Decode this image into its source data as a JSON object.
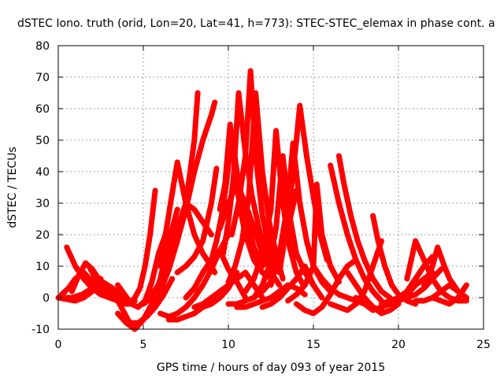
{
  "chart_data": {
    "type": "scatter",
    "title": "dSTEC Iono. truth (orid, Lon=20, Lat=41, h=773): STEC-STEC_elemax in phase cont. a",
    "xlabel": "GPS time / hours of day 093 of year 2015",
    "ylabel": "dSTEC  / TECUs",
    "xlim": [
      0,
      25
    ],
    "ylim": [
      -10,
      80
    ],
    "x_ticks": [
      0,
      5,
      10,
      15,
      20,
      25
    ],
    "y_ticks": [
      -10,
      0,
      10,
      20,
      30,
      40,
      50,
      60,
      70,
      80
    ],
    "grid": true,
    "legend": "none",
    "marker": "+",
    "color": "#ff0000",
    "series": [
      {
        "x": [
          0.0,
          0.5,
          1.0,
          1.5,
          2.0,
          2.5
        ],
        "y": [
          0,
          -0.5,
          -1,
          0,
          2,
          6
        ]
      },
      {
        "x": [
          0.5,
          1.0,
          1.5,
          2.0,
          2.5,
          3.0,
          3.5
        ],
        "y": [
          16,
          10,
          6,
          3,
          1,
          0,
          0
        ]
      },
      {
        "x": [
          0.2,
          0.6,
          1.0,
          1.5,
          2.0,
          2.5,
          3.0,
          3.5
        ],
        "y": [
          1,
          3,
          6,
          8,
          5,
          2,
          0,
          -1
        ]
      },
      {
        "x": [
          0.8,
          1.2,
          1.6,
          2.0,
          2.5,
          3.0,
          3.5,
          4.0
        ],
        "y": [
          2,
          7,
          11,
          9,
          5,
          2,
          0,
          -1
        ]
      },
      {
        "x": [
          1.8,
          2.2,
          2.6,
          3.0,
          3.5,
          4.0,
          4.5
        ],
        "y": [
          10,
          6,
          3,
          1,
          0,
          -1,
          -1
        ]
      },
      {
        "x": [
          0.2,
          0.8,
          1.4,
          2.0,
          2.6,
          3.2,
          3.8,
          4.2
        ],
        "y": [
          0,
          0,
          1,
          3,
          5,
          3,
          0,
          -2
        ]
      },
      {
        "x": [
          3.0,
          3.3,
          3.6,
          3.9,
          4.2,
          4.5,
          4.8,
          5.1,
          5.4,
          5.7
        ],
        "y": [
          1,
          0,
          -1,
          -2,
          -2,
          0,
          3,
          10,
          20,
          34
        ]
      },
      {
        "x": [
          3.5,
          3.9,
          4.3,
          4.7,
          5.1,
          5.5,
          5.9,
          6.3
        ],
        "y": [
          4,
          1,
          -2,
          -3,
          -1,
          5,
          14,
          20
        ]
      },
      {
        "x": [
          3.2,
          3.7,
          4.2,
          4.7,
          5.2,
          5.7,
          6.2,
          6.7
        ],
        "y": [
          2,
          -3,
          -8,
          -8,
          -6,
          -3,
          1,
          6
        ]
      },
      {
        "x": [
          3.5,
          4.0,
          4.5,
          5.0,
          5.5,
          6.0,
          6.5,
          7.0
        ],
        "y": [
          -5,
          -8,
          -10,
          -7,
          -2,
          6,
          18,
          28
        ]
      },
      {
        "x": [
          4.0,
          4.5,
          5.0,
          5.5,
          6.0,
          6.5,
          7.0,
          7.5,
          8.0,
          8.2
        ],
        "y": [
          -7,
          -9,
          -7,
          -3,
          2,
          9,
          18,
          30,
          50,
          65
        ]
      },
      {
        "x": [
          5.0,
          5.5,
          6.0,
          6.5,
          7.0,
          7.5,
          8.0,
          8.5,
          9.0,
          9.2
        ],
        "y": [
          -2,
          0,
          4,
          10,
          18,
          28,
          40,
          50,
          58,
          62
        ]
      },
      {
        "x": [
          5.5,
          6.0,
          6.5,
          7.0,
          7.5,
          8.0,
          8.5,
          9.0
        ],
        "y": [
          1,
          5,
          12,
          22,
          30,
          28,
          24,
          20
        ]
      },
      {
        "x": [
          6.0,
          6.3,
          6.6,
          7.0,
          7.5,
          8.0,
          8.5,
          9.0,
          9.2
        ],
        "y": [
          10,
          20,
          30,
          43,
          30,
          20,
          14,
          10,
          8
        ]
      },
      {
        "x": [
          6.0,
          6.5,
          7.0,
          7.5,
          8.0,
          8.5,
          9.0,
          9.5,
          10.0
        ],
        "y": [
          -5,
          -6,
          -5,
          -3,
          0,
          4,
          9,
          15,
          20
        ]
      },
      {
        "x": [
          6.5,
          7.0,
          7.5,
          8.0,
          8.5,
          9.0,
          9.5,
          10.0,
          10.5
        ],
        "y": [
          -7,
          -7,
          -6,
          -5,
          -3,
          -2,
          0,
          3,
          8
        ]
      },
      {
        "x": [
          7.0,
          7.5,
          8.0,
          8.5,
          9.0,
          9.3
        ],
        "y": [
          8,
          10,
          13,
          18,
          30,
          41
        ]
      },
      {
        "x": [
          7.5,
          8.0,
          8.5,
          9.0,
          9.5,
          10.0,
          10.5,
          11.0
        ],
        "y": [
          0,
          3,
          8,
          12,
          15,
          9,
          5,
          0
        ]
      },
      {
        "x": [
          8.0,
          8.5,
          9.0,
          9.5,
          10.0,
          10.5,
          11.0,
          11.5,
          12.0
        ],
        "y": [
          -3,
          -2,
          0,
          2,
          4,
          6,
          8,
          4,
          0
        ]
      },
      {
        "x": [
          9.0,
          9.3,
          9.6,
          9.9,
          10.2,
          10.5,
          11.0,
          11.5,
          12.0
        ],
        "y": [
          12,
          18,
          26,
          37,
          52,
          40,
          26,
          16,
          10
        ]
      },
      {
        "x": [
          9.5,
          9.8,
          10.1,
          10.4,
          10.7,
          11.0,
          11.5,
          12.0,
          12.5
        ],
        "y": [
          28,
          36,
          55,
          40,
          28,
          20,
          12,
          8,
          6
        ]
      },
      {
        "x": [
          9.5,
          10.0,
          10.5,
          11.0,
          11.5,
          12.0,
          12.5,
          13.0
        ],
        "y": [
          22,
          30,
          36,
          30,
          22,
          14,
          8,
          4
        ]
      },
      {
        "x": [
          9.7,
          10.0,
          10.3,
          10.6,
          11.0,
          11.4,
          11.8,
          12.2,
          12.6
        ],
        "y": [
          14,
          24,
          38,
          65,
          46,
          32,
          22,
          14,
          8
        ]
      },
      {
        "x": [
          10.0,
          10.4,
          10.8,
          11.2,
          11.6,
          12.0,
          12.4,
          12.8,
          13.2
        ],
        "y": [
          5,
          10,
          18,
          32,
          65,
          40,
          24,
          14,
          6
        ]
      },
      {
        "x": [
          10.2,
          10.6,
          11.0,
          11.3,
          11.6,
          12.0,
          12.4,
          12.8
        ],
        "y": [
          20,
          30,
          45,
          72,
          45,
          26,
          16,
          10
        ]
      },
      {
        "x": [
          10.0,
          10.5,
          11.0,
          11.5,
          12.0,
          12.5,
          13.0,
          13.5,
          14.0
        ],
        "y": [
          -2,
          -2,
          -1,
          0,
          2,
          5,
          12,
          22,
          34
        ]
      },
      {
        "x": [
          10.5,
          11.0,
          11.5,
          12.0,
          12.5,
          13.0,
          13.5,
          14.0,
          14.5
        ],
        "y": [
          -3,
          -3,
          -2,
          -1,
          0,
          2,
          4,
          3,
          1
        ]
      },
      {
        "x": [
          11.0,
          11.5,
          12.0,
          12.5,
          12.8,
          13.2,
          13.6,
          14.0,
          14.4
        ],
        "y": [
          2,
          6,
          14,
          28,
          53,
          30,
          16,
          8,
          4
        ]
      },
      {
        "x": [
          11.5,
          12.0,
          12.4,
          12.8,
          13.2,
          13.6,
          14.0,
          14.5,
          15.0
        ],
        "y": [
          0,
          4,
          10,
          22,
          45,
          26,
          14,
          8,
          4
        ]
      },
      {
        "x": [
          12.0,
          12.5,
          13.0,
          13.5,
          14.0,
          14.5,
          15.0,
          15.5
        ],
        "y": [
          -3,
          -2,
          0,
          3,
          6,
          10,
          4,
          0
        ]
      },
      {
        "x": [
          12.5,
          13.0,
          13.5,
          13.8,
          14.2,
          14.6,
          15.0,
          15.5,
          16.0
        ],
        "y": [
          4,
          14,
          30,
          49,
          30,
          18,
          10,
          5,
          2
        ]
      },
      {
        "x": [
          13.0,
          13.5,
          14.0,
          14.2,
          14.6,
          15.0,
          15.4,
          15.8
        ],
        "y": [
          8,
          25,
          50,
          61,
          45,
          32,
          20,
          12
        ]
      },
      {
        "x": [
          13.5,
          14.0,
          14.5,
          15.0,
          15.2,
          15.5,
          16.0,
          16.5
        ],
        "y": [
          -1,
          1,
          4,
          10,
          36,
          20,
          10,
          5
        ]
      },
      {
        "x": [
          14.0,
          14.5,
          15.0,
          15.5,
          16.0,
          16.5,
          17.0,
          17.5
        ],
        "y": [
          -2,
          -4,
          -5,
          -3,
          1,
          6,
          10,
          12
        ]
      },
      {
        "x": [
          15.0,
          15.5,
          16.0,
          16.5,
          17.0,
          17.5,
          18.0,
          18.5,
          19.0
        ],
        "y": [
          10,
          6,
          3,
          1,
          0,
          -1,
          -2,
          -3,
          -4
        ]
      },
      {
        "x": [
          16.0,
          16.5,
          17.0,
          17.5,
          18.0,
          18.5,
          19.0
        ],
        "y": [
          42,
          30,
          20,
          12,
          6,
          2,
          -1
        ]
      },
      {
        "x": [
          16.5,
          16.8,
          17.2,
          17.6,
          18.0,
          18.5,
          19.0,
          19.5
        ],
        "y": [
          45,
          36,
          26,
          18,
          12,
          6,
          2,
          0
        ]
      },
      {
        "x": [
          16.0,
          16.5,
          17.0,
          17.5,
          18.0,
          18.5,
          19.0
        ],
        "y": [
          -2,
          -3,
          -4,
          -2,
          2,
          10,
          18
        ]
      },
      {
        "x": [
          17.0,
          17.5,
          18.0,
          18.5,
          19.0,
          19.5,
          20.0
        ],
        "y": [
          8,
          4,
          0,
          -3,
          -5,
          -4,
          -2
        ]
      },
      {
        "x": [
          18.5,
          18.8,
          19.2,
          19.6,
          20.0,
          20.5,
          21.0
        ],
        "y": [
          26,
          18,
          10,
          4,
          1,
          -1,
          -2
        ]
      },
      {
        "x": [
          17.5,
          18.0,
          18.5,
          19.0,
          19.5,
          20.0,
          20.5,
          21.0,
          21.5,
          22.0
        ],
        "y": [
          0,
          -2,
          -4,
          -3,
          -2,
          -1,
          1,
          4,
          6,
          8
        ]
      },
      {
        "x": [
          19.0,
          19.5,
          20.0,
          20.5,
          21.0,
          21.5,
          22.0
        ],
        "y": [
          -2,
          -1,
          0,
          2,
          6,
          10,
          13
        ]
      },
      {
        "x": [
          19.5,
          20.0,
          20.5,
          21.0,
          21.5,
          22.0,
          22.5
        ],
        "y": [
          -1,
          -1,
          0,
          1,
          3,
          6,
          9
        ]
      },
      {
        "x": [
          20.5,
          21.0,
          21.5,
          22.0,
          22.5,
          23.0,
          23.5,
          24.0
        ],
        "y": [
          6,
          18,
          12,
          6,
          2,
          0,
          -1,
          -1
        ]
      },
      {
        "x": [
          21.5,
          22.0,
          22.3,
          22.7,
          23.0,
          23.5,
          24.0
        ],
        "y": [
          4,
          10,
          16,
          10,
          6,
          2,
          0
        ]
      },
      {
        "x": [
          21.0,
          21.5,
          22.0,
          22.5,
          23.0,
          23.5,
          24.0
        ],
        "y": [
          -1,
          -1,
          0,
          2,
          4,
          2,
          0
        ]
      },
      {
        "x": [
          22.0,
          22.5,
          23.0,
          23.5,
          24.0
        ],
        "y": [
          0,
          -1,
          -2,
          0,
          4
        ]
      }
    ]
  }
}
